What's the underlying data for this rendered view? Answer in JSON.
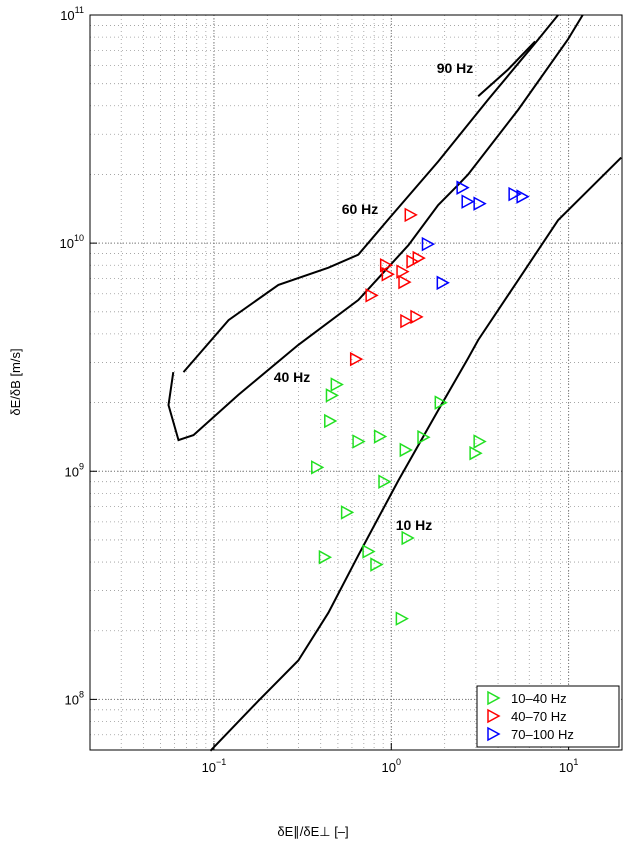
{
  "chart_data": {
    "type": "scatter",
    "xlabel": "δE∥/δE⊥ [–]",
    "ylabel": "δE/δB [m/s]",
    "xscale": "log",
    "yscale": "log",
    "grid": true,
    "legend": "lower right",
    "xlim": [
      0.02,
      20
    ],
    "ylim": [
      60000000,
      100000000000
    ],
    "xticks": [
      {
        "value": 0.1,
        "label": "10",
        "sup": "−1"
      },
      {
        "value": 1,
        "label": "10",
        "sup": "0"
      },
      {
        "value": 10,
        "label": "10",
        "sup": "1"
      }
    ],
    "yticks": [
      {
        "value": 100000000,
        "label": "10",
        "sup": "8"
      },
      {
        "value": 1000000000,
        "label": "10",
        "sup": "9"
      },
      {
        "value": 10000000000,
        "label": "10",
        "sup": "10"
      },
      {
        "value": 100000000000,
        "label": "10",
        "sup": "11"
      }
    ],
    "series": [
      {
        "name": "10–40 Hz",
        "color": "#22e022",
        "x": [
          0.49,
          0.46,
          0.45,
          1.89,
          0.38,
          0.65,
          0.86,
          1.2,
          1.51,
          3.13,
          2.97,
          0.91,
          0.56,
          0.42,
          0.74,
          0.82,
          1.23,
          1.14
        ],
        "y": [
          2400000000,
          2150000000,
          1660000000,
          2000000000,
          1040000000,
          1350000000,
          1420000000,
          1240000000,
          1410000000,
          1350000000,
          1200000000,
          900000000,
          660000000,
          420000000,
          445000000,
          390000000,
          510000000,
          226000000
        ]
      },
      {
        "name": "40–70 Hz",
        "color": "#ff0000",
        "x": [
          1.28,
          0.93,
          0.95,
          0.77,
          1.15,
          1.18,
          1.31,
          1.42,
          1.21,
          1.38,
          0.63
        ],
        "y": [
          13300000000,
          8000000000,
          7300000000,
          5900000000,
          7500000000,
          6750000000,
          8300000000,
          8600000000,
          4550000000,
          4750000000,
          3100000000
        ]
      },
      {
        "name": "70–100 Hz",
        "color": "#0000ff",
        "x": [
          2.51,
          2.68,
          3.13,
          4.93,
          5.47,
          1.6,
          1.94
        ],
        "y": [
          17500000000,
          15200000000,
          14900000000,
          16400000000,
          16000000000,
          9900000000,
          6700000000
        ]
      }
    ],
    "curves": [
      {
        "label": "10 Hz",
        "color": "#000000",
        "x": [
          0.0955,
          0.178,
          0.299,
          0.442,
          0.652,
          1.095,
          1.84,
          2.71,
          3.09,
          5.2,
          8.72,
          19.8
        ],
        "y": [
          59500000,
          98600000,
          148000000,
          240000000,
          428000000,
          910000000,
          1850000000,
          3130000000,
          3760000000,
          6900000000,
          12600000000,
          23700000000
        ]
      },
      {
        "label": "40 Hz",
        "color": "#000000",
        "x": [
          0.059,
          0.0554,
          0.0631,
          0.0767,
          0.137,
          0.299,
          0.652,
          1.25,
          1.84,
          2.38,
          2.71,
          5.2,
          9.9,
          12.0
        ],
        "y": [
          2720000000,
          1950000000,
          1370000000,
          1440000000,
          2160000000,
          3580000000,
          5630000000,
          9800000000,
          14700000000,
          18000000000,
          20000000000,
          38500000000,
          78000000000,
          100000000000
        ]
      },
      {
        "label": "60 Hz",
        "color": "#000000",
        "x": [
          0.0673,
          0.121,
          0.231,
          0.442,
          0.652,
          0.962,
          1.84,
          3.52,
          6.73,
          8.72
        ],
        "y": [
          2720000000,
          4600000000,
          6560000000,
          7800000000,
          8900000000,
          12700000000,
          22800000000,
          42600000000,
          78000000000,
          100000000000
        ]
      },
      {
        "label": "90 Hz",
        "color": "#000000",
        "x": [
          3.09,
          4.56,
          6.47
        ],
        "y": [
          44000000000,
          57700000000,
          76600000000
        ]
      }
    ]
  }
}
